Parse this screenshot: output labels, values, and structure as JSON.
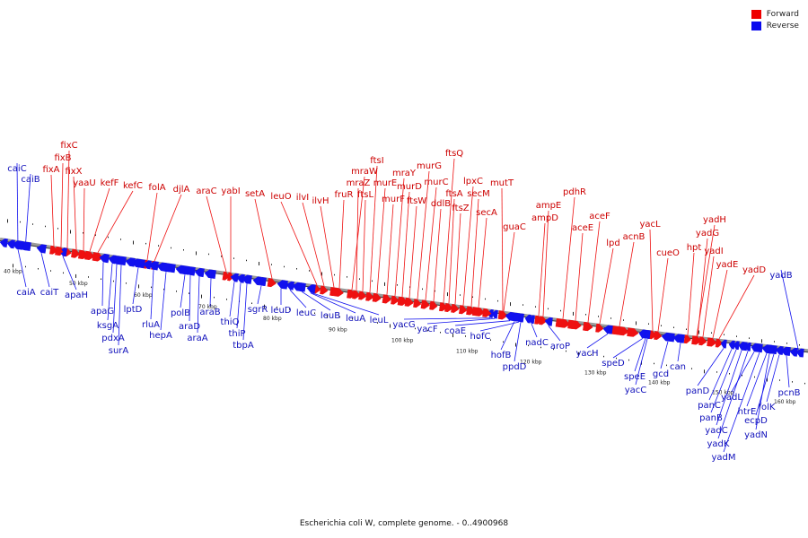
{
  "caption": "Escherichia coli W, complete genome. - 0..4900968",
  "legend": [
    {
      "label": "Forward",
      "color": "#ee0000"
    },
    {
      "label": "Reverse",
      "color": "#0a0aee"
    }
  ],
  "colors": {
    "forward": "#ee1111",
    "reverse": "#1111ee",
    "backbone": "#808080"
  },
  "tick_labels": [
    "40 kbp",
    "50 kbp",
    "60 kbp",
    "70 kbp",
    "80 kbp",
    "90 kbp",
    "100 kbp",
    "110 kbp",
    "120 kbp",
    "130 kbp",
    "140 kbp",
    "150 kbp",
    "160 kbp"
  ],
  "forward_genes": [
    "fixC",
    "fixB",
    "fixA",
    "fixX",
    "yaaU",
    "kefF",
    "kefC",
    "folA",
    "djlA",
    "araC",
    "yabI",
    "setA",
    "leuO",
    "ilvI",
    "ilvH",
    "fruR",
    "mraZ",
    "mraW",
    "ftsL",
    "ftsI",
    "murE",
    "murF",
    "mraY",
    "murD",
    "ftsW",
    "murG",
    "murC",
    "ddlB",
    "ftsQ",
    "ftsA",
    "ftsZ",
    "lpxC",
    "secM",
    "secA",
    "mutT",
    "guaC",
    "ampD",
    "ampE",
    "pdhR",
    "aceE",
    "aceF",
    "lpd",
    "acnB",
    "yacL",
    "cueO",
    "hpt",
    "yadH",
    "yadG",
    "yadI",
    "yadE",
    "yadD"
  ],
  "reverse_genes": [
    "caiC",
    "caiB",
    "caiA",
    "caiT",
    "apaH",
    "apaG",
    "ksgA",
    "pdxA",
    "surA",
    "lptD",
    "rluA",
    "hepA",
    "polB",
    "araD",
    "araA",
    "araB",
    "thiQ",
    "thiP",
    "tbpA",
    "sgrR",
    "leuD",
    "leuC",
    "leuB",
    "leuA",
    "leuL",
    "yacG",
    "yacF",
    "coaE",
    "hofC",
    "hofB",
    "ppdD",
    "nadC",
    "aroP",
    "yacH",
    "speD",
    "speE",
    "yacC",
    "gcd",
    "can",
    "panD",
    "panC",
    "panB",
    "yadC",
    "yadK",
    "yadL",
    "yadM",
    "htrE",
    "ecpD",
    "folK",
    "yadN",
    "pcnB",
    "yadB"
  ]
}
